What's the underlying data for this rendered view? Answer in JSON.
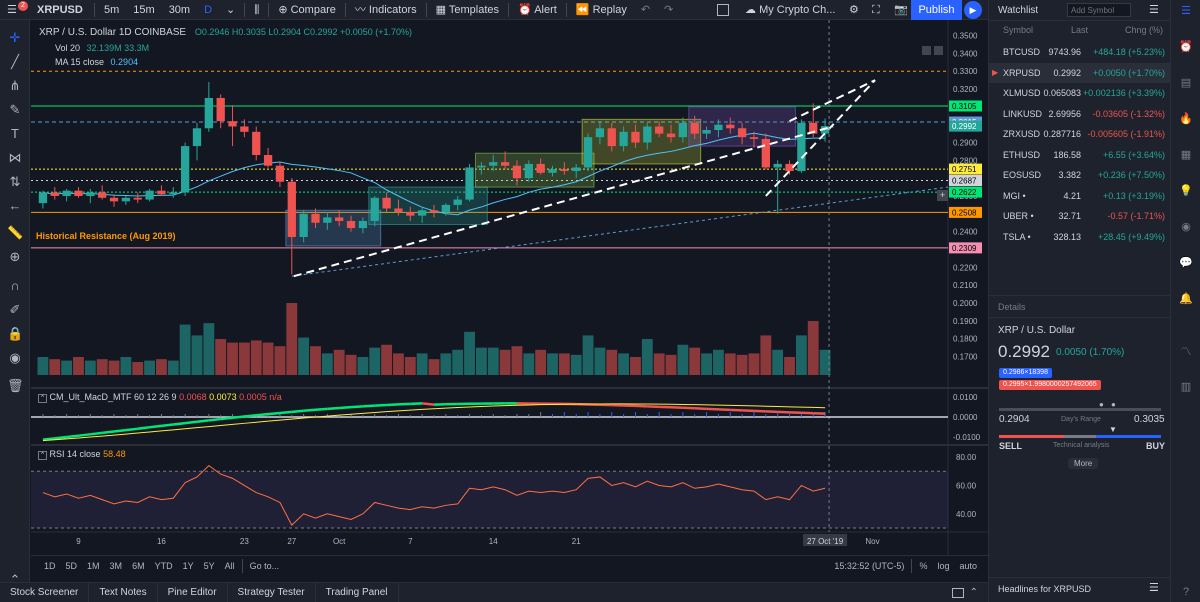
{
  "app": {
    "notification_count": "2"
  },
  "toolbar": {
    "symbol": "XRPUSD",
    "intervals": [
      "5m",
      "15m",
      "30m",
      "D"
    ],
    "compare": "Compare",
    "indicators": "Indicators",
    "templates": "Templates",
    "alert": "Alert",
    "replay": "Replay",
    "layout_name": "My Crypto Ch...",
    "publish": "Publish"
  },
  "chart": {
    "title": "XRP / U.S. Dollar  1D  COINBASE",
    "ohlc": "O0.2946  H0.3035  L0.2904  C0.2992  +0.0050 (+1.70%)",
    "vol_label": "Vol  20",
    "vol_values": "32.139M  33.3M",
    "ma_label": "MA  15 close",
    "ma_value": "0.2904",
    "annotation": "Historical Resistance (Aug 2019)",
    "macd_label": "CM_Ult_MacD_MTF  60 12 26 9",
    "macd_v1": "0.0068",
    "macd_v2": "0.0073",
    "macd_v3": "0.0005",
    "macd_v4": "n/a",
    "rsi_label": "RSI  14 close",
    "rsi_value": "58.48",
    "price_axis": [
      "0.3500",
      "0.3400",
      "0.3300",
      "0.3200",
      "0.3100",
      "0.3000",
      "0.2900",
      "0.2800",
      "0.2700",
      "0.2600",
      "0.2500",
      "0.2400",
      "0.2300",
      "0.2200",
      "0.2100",
      "0.2000",
      "0.1900",
      "0.1800",
      "0.1700"
    ],
    "price_tags": [
      {
        "value": "0.3105",
        "color": "#00e676",
        "text_color": "#000000"
      },
      {
        "value": "0.3015",
        "color": "#5b9bd5",
        "text_color": "#ffffff"
      },
      {
        "value": "0.2992",
        "color": "#26a69a",
        "text_color": "#ffffff"
      },
      {
        "value": "0.2751",
        "color": "#ffeb3b",
        "text_color": "#000000"
      },
      {
        "value": "0.2687",
        "color": "#d1d4dc",
        "text_color": "#000000"
      },
      {
        "value": "0.2622",
        "color": "#00e676",
        "text_color": "#000000"
      },
      {
        "value": "0.2508",
        "color": "#ff9800",
        "text_color": "#000000"
      },
      {
        "value": "0.2309",
        "color": "#f48fb1",
        "text_color": "#000000"
      }
    ],
    "macd_axis": [
      "0.0100",
      "0.0000",
      "-0.0100"
    ],
    "rsi_axis": [
      "80.00",
      "60.00",
      "40.00"
    ],
    "time_axis": [
      "9",
      "16",
      "23",
      "27",
      "Oct",
      "7",
      "14",
      "21",
      "27 Oct '19",
      "Nov"
    ],
    "candles": [
      {
        "o": 0.256,
        "h": 0.263,
        "l": 0.253,
        "c": 0.262
      },
      {
        "o": 0.262,
        "h": 0.265,
        "l": 0.258,
        "c": 0.26
      },
      {
        "o": 0.26,
        "h": 0.264,
        "l": 0.257,
        "c": 0.263
      },
      {
        "o": 0.263,
        "h": 0.265,
        "l": 0.259,
        "c": 0.26
      },
      {
        "o": 0.26,
        "h": 0.264,
        "l": 0.256,
        "c": 0.262
      },
      {
        "o": 0.262,
        "h": 0.266,
        "l": 0.258,
        "c": 0.259
      },
      {
        "o": 0.259,
        "h": 0.261,
        "l": 0.254,
        "c": 0.257
      },
      {
        "o": 0.257,
        "h": 0.26,
        "l": 0.255,
        "c": 0.259
      },
      {
        "o": 0.259,
        "h": 0.262,
        "l": 0.256,
        "c": 0.258
      },
      {
        "o": 0.258,
        "h": 0.264,
        "l": 0.257,
        "c": 0.263
      },
      {
        "o": 0.263,
        "h": 0.266,
        "l": 0.26,
        "c": 0.261
      },
      {
        "o": 0.261,
        "h": 0.265,
        "l": 0.259,
        "c": 0.262
      },
      {
        "o": 0.262,
        "h": 0.29,
        "l": 0.26,
        "c": 0.288
      },
      {
        "o": 0.288,
        "h": 0.301,
        "l": 0.28,
        "c": 0.298
      },
      {
        "o": 0.298,
        "h": 0.324,
        "l": 0.296,
        "c": 0.315
      },
      {
        "o": 0.315,
        "h": 0.317,
        "l": 0.298,
        "c": 0.302
      },
      {
        "o": 0.302,
        "h": 0.311,
        "l": 0.288,
        "c": 0.299
      },
      {
        "o": 0.299,
        "h": 0.303,
        "l": 0.293,
        "c": 0.296
      },
      {
        "o": 0.296,
        "h": 0.299,
        "l": 0.28,
        "c": 0.283
      },
      {
        "o": 0.283,
        "h": 0.287,
        "l": 0.276,
        "c": 0.277
      },
      {
        "o": 0.277,
        "h": 0.279,
        "l": 0.265,
        "c": 0.268
      },
      {
        "o": 0.268,
        "h": 0.27,
        "l": 0.216,
        "c": 0.237
      },
      {
        "o": 0.237,
        "h": 0.252,
        "l": 0.234,
        "c": 0.25
      },
      {
        "o": 0.25,
        "h": 0.253,
        "l": 0.242,
        "c": 0.245
      },
      {
        "o": 0.245,
        "h": 0.251,
        "l": 0.241,
        "c": 0.248
      },
      {
        "o": 0.248,
        "h": 0.252,
        "l": 0.243,
        "c": 0.246
      },
      {
        "o": 0.246,
        "h": 0.249,
        "l": 0.24,
        "c": 0.242
      },
      {
        "o": 0.242,
        "h": 0.248,
        "l": 0.239,
        "c": 0.246
      },
      {
        "o": 0.246,
        "h": 0.26,
        "l": 0.243,
        "c": 0.259
      },
      {
        "o": 0.259,
        "h": 0.262,
        "l": 0.251,
        "c": 0.253
      },
      {
        "o": 0.253,
        "h": 0.258,
        "l": 0.249,
        "c": 0.251
      },
      {
        "o": 0.251,
        "h": 0.254,
        "l": 0.246,
        "c": 0.249
      },
      {
        "o": 0.249,
        "h": 0.254,
        "l": 0.245,
        "c": 0.252
      },
      {
        "o": 0.252,
        "h": 0.255,
        "l": 0.248,
        "c": 0.251
      },
      {
        "o": 0.251,
        "h": 0.256,
        "l": 0.249,
        "c": 0.255
      },
      {
        "o": 0.255,
        "h": 0.26,
        "l": 0.252,
        "c": 0.258
      },
      {
        "o": 0.258,
        "h": 0.278,
        "l": 0.257,
        "c": 0.276
      },
      {
        "o": 0.276,
        "h": 0.279,
        "l": 0.272,
        "c": 0.277
      },
      {
        "o": 0.277,
        "h": 0.283,
        "l": 0.274,
        "c": 0.279
      },
      {
        "o": 0.279,
        "h": 0.285,
        "l": 0.275,
        "c": 0.277
      },
      {
        "o": 0.277,
        "h": 0.28,
        "l": 0.266,
        "c": 0.27
      },
      {
        "o": 0.27,
        "h": 0.28,
        "l": 0.268,
        "c": 0.278
      },
      {
        "o": 0.278,
        "h": 0.281,
        "l": 0.272,
        "c": 0.273
      },
      {
        "o": 0.273,
        "h": 0.277,
        "l": 0.271,
        "c": 0.275
      },
      {
        "o": 0.275,
        "h": 0.279,
        "l": 0.272,
        "c": 0.274
      },
      {
        "o": 0.274,
        "h": 0.278,
        "l": 0.27,
        "c": 0.276
      },
      {
        "o": 0.276,
        "h": 0.295,
        "l": 0.274,
        "c": 0.293
      },
      {
        "o": 0.293,
        "h": 0.302,
        "l": 0.289,
        "c": 0.298
      },
      {
        "o": 0.298,
        "h": 0.301,
        "l": 0.285,
        "c": 0.288
      },
      {
        "o": 0.288,
        "h": 0.299,
        "l": 0.285,
        "c": 0.296
      },
      {
        "o": 0.296,
        "h": 0.3,
        "l": 0.287,
        "c": 0.29
      },
      {
        "o": 0.29,
        "h": 0.301,
        "l": 0.286,
        "c": 0.299
      },
      {
        "o": 0.299,
        "h": 0.302,
        "l": 0.293,
        "c": 0.295
      },
      {
        "o": 0.295,
        "h": 0.3,
        "l": 0.29,
        "c": 0.293
      },
      {
        "o": 0.293,
        "h": 0.304,
        "l": 0.29,
        "c": 0.301
      },
      {
        "o": 0.301,
        "h": 0.305,
        "l": 0.292,
        "c": 0.295
      },
      {
        "o": 0.295,
        "h": 0.299,
        "l": 0.292,
        "c": 0.297
      },
      {
        "o": 0.297,
        "h": 0.303,
        "l": 0.293,
        "c": 0.3
      },
      {
        "o": 0.3,
        "h": 0.304,
        "l": 0.295,
        "c": 0.298
      },
      {
        "o": 0.298,
        "h": 0.301,
        "l": 0.289,
        "c": 0.293
      },
      {
        "o": 0.293,
        "h": 0.296,
        "l": 0.287,
        "c": 0.292
      },
      {
        "o": 0.292,
        "h": 0.295,
        "l": 0.275,
        "c": 0.276
      },
      {
        "o": 0.276,
        "h": 0.28,
        "l": 0.25,
        "c": 0.278
      },
      {
        "o": 0.278,
        "h": 0.28,
        "l": 0.272,
        "c": 0.274
      },
      {
        "o": 0.274,
        "h": 0.303,
        "l": 0.273,
        "c": 0.301
      },
      {
        "o": 0.301,
        "h": 0.312,
        "l": 0.293,
        "c": 0.295
      },
      {
        "o": 0.295,
        "h": 0.3035,
        "l": 0.2904,
        "c": 0.2992
      }
    ],
    "volumes": [
      0.25,
      0.22,
      0.2,
      0.25,
      0.2,
      0.22,
      0.2,
      0.25,
      0.18,
      0.2,
      0.22,
      0.2,
      0.7,
      0.55,
      0.72,
      0.5,
      0.45,
      0.45,
      0.48,
      0.45,
      0.4,
      1.0,
      0.52,
      0.4,
      0.3,
      0.35,
      0.28,
      0.25,
      0.38,
      0.42,
      0.3,
      0.25,
      0.3,
      0.22,
      0.3,
      0.35,
      0.6,
      0.38,
      0.38,
      0.35,
      0.4,
      0.3,
      0.35,
      0.3,
      0.3,
      0.28,
      0.55,
      0.38,
      0.35,
      0.3,
      0.25,
      0.5,
      0.3,
      0.28,
      0.42,
      0.38,
      0.3,
      0.35,
      0.3,
      0.28,
      0.3,
      0.55,
      0.35,
      0.25,
      0.55,
      0.75,
      0.35
    ],
    "rsi": [
      55,
      52,
      54,
      51,
      53,
      50,
      47,
      49,
      48,
      52,
      50,
      51,
      62,
      66,
      74,
      68,
      65,
      60,
      55,
      52,
      48,
      32,
      40,
      37,
      40,
      38,
      36,
      40,
      48,
      46,
      44,
      43,
      45,
      44,
      46,
      47,
      58,
      57,
      59,
      57,
      53,
      56,
      55,
      56,
      55,
      57,
      65,
      66,
      60,
      62,
      59,
      63,
      60,
      59,
      62,
      58,
      59,
      61,
      59,
      57,
      56,
      50,
      52,
      50,
      60,
      56,
      58
    ]
  },
  "range_bar": {
    "ranges": [
      "1D",
      "5D",
      "1M",
      "3M",
      "6M",
      "YTD",
      "1Y",
      "5Y",
      "All"
    ],
    "goto": "Go to...",
    "time": "15:32:52 (UTC-5)",
    "percent": "%",
    "log": "log",
    "auto": "auto"
  },
  "footer": {
    "tabs": [
      "Stock Screener",
      "Text Notes",
      "Pine Editor",
      "Strategy Tester",
      "Trading Panel"
    ]
  },
  "watchlist": {
    "title": "Watchlist",
    "add_symbol_placeholder": "Add Symbol",
    "headers": {
      "symbol": "Symbol",
      "last": "Last",
      "chng": "Chng (%)"
    },
    "rows": [
      {
        "symbol": "BTCUSD",
        "last": "9743.96",
        "chng": "+484.18 (+5.23%)",
        "dir": "up"
      },
      {
        "symbol": "XRPUSD",
        "last": "0.2992",
        "chng": "+0.0050 (+1.70%)",
        "dir": "up"
      },
      {
        "symbol": "XLMUSD",
        "last": "0.065083",
        "chng": "+0.002136 (+3.39%)",
        "dir": "up"
      },
      {
        "symbol": "LINKUSD",
        "last": "2.69956",
        "chng": "-0.03605 (-1.32%)",
        "dir": "down"
      },
      {
        "symbol": "ZRXUSD",
        "last": "0.287716",
        "chng": "-0.005605 (-1.91%)",
        "dir": "down"
      },
      {
        "symbol": "ETHUSD",
        "last": "186.58",
        "chng": "+6.55 (+3.64%)",
        "dir": "up"
      },
      {
        "symbol": "EOSUSD",
        "last": "3.382",
        "chng": "+0.236 (+7.50%)",
        "dir": "up"
      },
      {
        "symbol": "MGI •",
        "last": "4.21",
        "chng": "+0.13 (+3.19%)",
        "dir": "up"
      },
      {
        "symbol": "UBER •",
        "last": "32.71",
        "chng": "-0.57 (-1.71%)",
        "dir": "down"
      },
      {
        "symbol": "TSLA •",
        "last": "328.13",
        "chng": "+28.45 (+9.49%)",
        "dir": "up"
      }
    ]
  },
  "details": {
    "header": "Details",
    "name": "XRP / U.S. Dollar",
    "price": "0.2992",
    "change": "0.0050 (1.70%)",
    "bid": "0.2986×18398",
    "ask": "0.2995×1.9980000257492065",
    "low": "0.2904",
    "high": "0.3035",
    "range_label": "Day's Range",
    "sell": "SELL",
    "buy": "BUY",
    "ta_label": "Technical analysis",
    "more": "More"
  },
  "headlines": {
    "title": "Headlines for XRPUSD"
  }
}
